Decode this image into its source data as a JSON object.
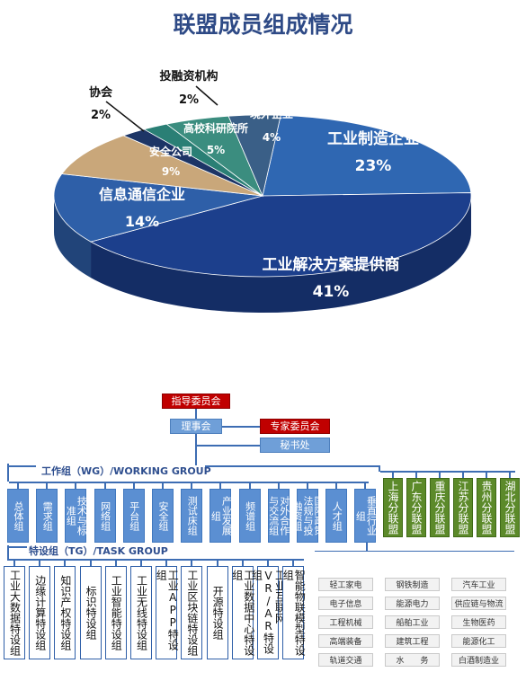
{
  "title": "联盟成员组成情况",
  "chart_data": {
    "type": "pie",
    "title": "联盟成员组成情况",
    "slices": [
      {
        "label": "工业制造企业",
        "value": 23,
        "display": "23%",
        "color": "#2f67b2"
      },
      {
        "label": "工业解决方案提供商",
        "value": 41,
        "display": "41%",
        "color": "#1c3f8c"
      },
      {
        "label": "信息通信企业",
        "value": 14,
        "display": "14%",
        "color": "#2e5fa8"
      },
      {
        "label": "安全公司",
        "value": 9,
        "display": "9%",
        "color": "#c9a77a"
      },
      {
        "label": "协会",
        "value": 2,
        "display": "2%",
        "color": "#1d3566"
      },
      {
        "label": "投融资机构",
        "value": 2,
        "display": "2%",
        "color": "#2a7f75"
      },
      {
        "label": "高校科研院所",
        "value": 5,
        "display": "5%",
        "color": "#3b8d7f"
      },
      {
        "label": "境外企业",
        "value": 4,
        "display": "4%",
        "color": "#3a5f87"
      }
    ]
  },
  "org": {
    "guide_committee": "指导委员会",
    "council": "理事会",
    "expert_committee": "专家委员会",
    "secretariat": "秘书处",
    "wg_label": "工作组（WG）/WORKING GROUP",
    "tg_label": "特设组（TG）/TASK GROUP",
    "working_groups": [
      "总体组",
      "需求组",
      "技术与标准组",
      "网络组",
      "平台组",
      "安全组",
      "测试床组",
      "产业发展组",
      "频谱组",
      "对外合作与交流组",
      "国际政策法规与投融资组",
      "人才组",
      "垂直行业组"
    ],
    "branches": [
      "上海分联盟",
      "广东分联盟",
      "重庆分联盟",
      "江苏分联盟",
      "贵州分联盟",
      "湖北分联盟"
    ],
    "task_groups": [
      "工业大数据特设组",
      "边缘计算特设组",
      "知识产权特设组",
      "标识特设组",
      "工业智能特设组",
      "工业无线特设组",
      "工业APP特设组",
      "工业区块链特设组",
      "开源特设组",
      "工业数据中心特设组",
      "工业互联网VR/AR特设组",
      "智能物联模型特设组"
    ],
    "industries": [
      "轻工家电",
      "钢铁制造",
      "汽车工业",
      "电子信息",
      "能源电力",
      "供应链与物流",
      "工程机械",
      "船舶工业",
      "生物医药",
      "高端装备",
      "建筑工程",
      "能源化工",
      "轨道交通",
      "水　　务",
      "白酒制造业"
    ]
  }
}
